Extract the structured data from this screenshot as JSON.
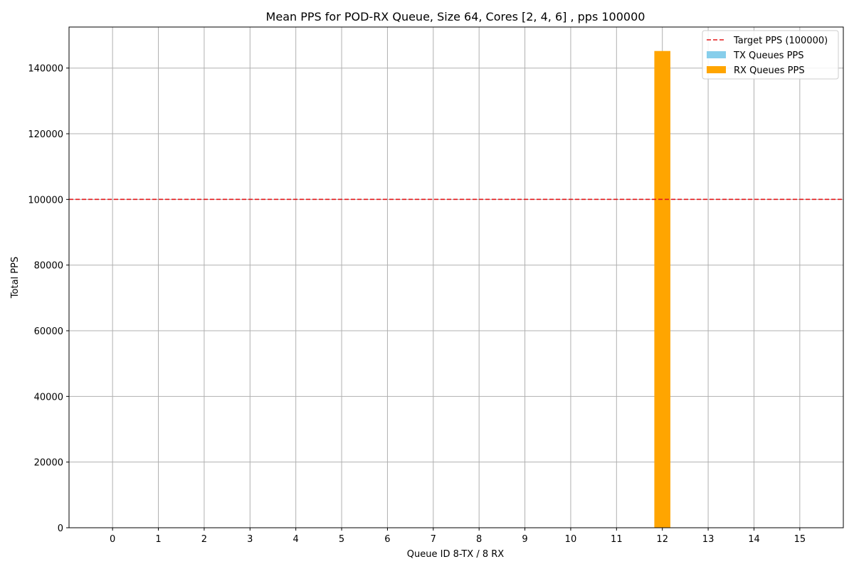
{
  "chart_data": {
    "type": "bar",
    "title": "Mean PPS for POD-RX Queue, Size 64, Cores [2, 4, 6] , pps 100000",
    "xlabel": "Queue ID 8-TX / 8 RX",
    "ylabel": "Total PPS",
    "categories": [
      "0",
      "1",
      "2",
      "3",
      "4",
      "5",
      "6",
      "7",
      "8",
      "9",
      "10",
      "11",
      "12",
      "13",
      "14",
      "15"
    ],
    "ylim": [
      0,
      152500
    ],
    "xlim": [
      -0.95,
      15.95
    ],
    "yticks": [
      0,
      20000,
      40000,
      60000,
      80000,
      100000,
      120000,
      140000
    ],
    "series": [
      {
        "name": "TX Queues PPS",
        "color": "#87CEEB",
        "values": [
          0,
          0,
          0,
          0,
          0,
          0,
          0,
          0,
          0,
          0,
          0,
          0,
          0,
          0,
          0,
          0
        ]
      },
      {
        "name": "RX Queues PPS",
        "color": "#FFA500",
        "values": [
          0,
          0,
          0,
          0,
          0,
          0,
          0,
          0,
          0,
          0,
          0,
          0,
          145200,
          0,
          0,
          0
        ]
      }
    ],
    "reference_line": {
      "name": "Target PPS (100000)",
      "value": 100000,
      "color": "#e31a1c",
      "style": "dashed"
    },
    "grid": true,
    "legend_position": "top-right"
  }
}
